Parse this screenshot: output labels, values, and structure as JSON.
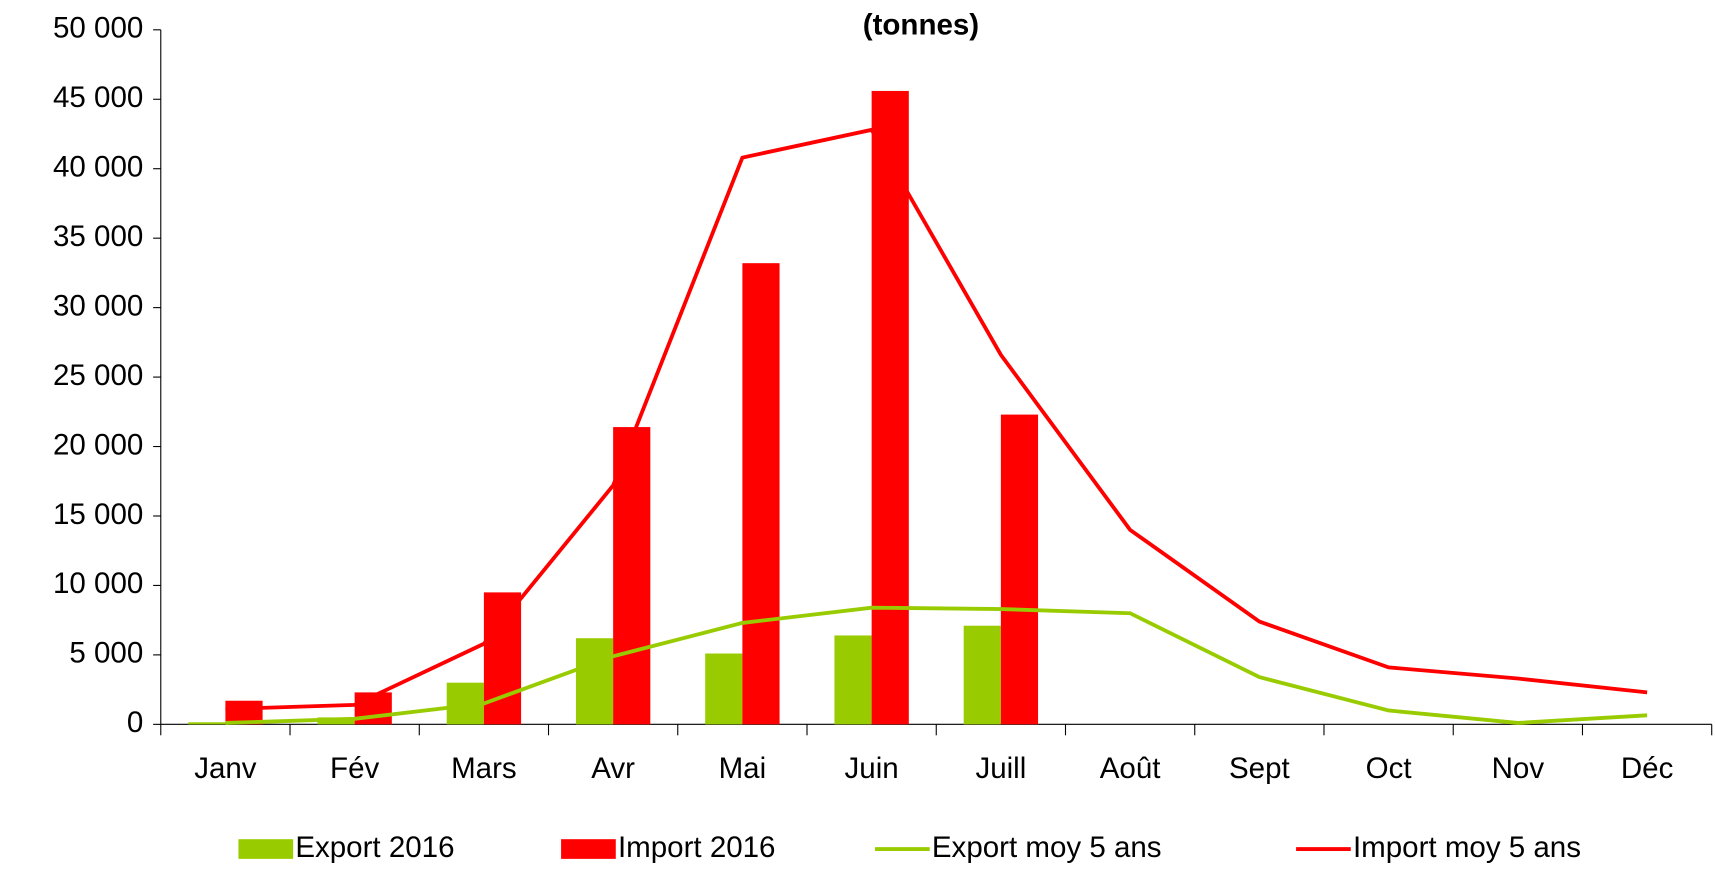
{
  "chart_data": {
    "type": "bar",
    "title": "(tonnes)",
    "categories": [
      "Janv",
      "Fév",
      "Mars",
      "Avr",
      "Mai",
      "Juin",
      "Juill",
      "Août",
      "Sept",
      "Oct",
      "Nov",
      "Déc"
    ],
    "series": [
      {
        "name": "Export 2016",
        "type": "bar",
        "color": "#99cc00",
        "values": [
          150,
          500,
          3000,
          6200,
          5100,
          6400,
          7100,
          null,
          null,
          null,
          null,
          null
        ]
      },
      {
        "name": "Import 2016",
        "type": "bar",
        "color": "#ff0000",
        "values": [
          1700,
          2300,
          9500,
          21400,
          33200,
          45600,
          22300,
          null,
          null,
          null,
          null,
          null
        ]
      },
      {
        "name": "Export moy 5 ans",
        "type": "line",
        "color": "#99cc00",
        "values": [
          100,
          400,
          1500,
          4900,
          7300,
          8400,
          8300,
          8000,
          3400,
          1000,
          100,
          650
        ]
      },
      {
        "name": "Import moy 5 ans",
        "type": "line",
        "color": "#ff0000",
        "values": [
          1100,
          1400,
          5800,
          17200,
          40800,
          42800,
          26600,
          14000,
          7400,
          4100,
          3300,
          2300
        ]
      }
    ],
    "ylim": [
      0,
      50000
    ],
    "yticks": [
      0,
      {
        "value": 5000,
        "label": "5 000"
      },
      {
        "value": 10000,
        "label": "10 000"
      },
      {
        "value": 15000,
        "label": "15 000"
      },
      {
        "value": 20000,
        "label": "20 000"
      },
      {
        "value": 25000,
        "label": "25 000"
      },
      {
        "value": 30000,
        "label": "30 000"
      },
      {
        "value": 35000,
        "label": "35 000"
      },
      {
        "value": 40000,
        "label": "40 000"
      },
      {
        "value": 45000,
        "label": "45 000"
      },
      {
        "value": 50000,
        "label": "50 000"
      }
    ],
    "legend": "bottom"
  }
}
